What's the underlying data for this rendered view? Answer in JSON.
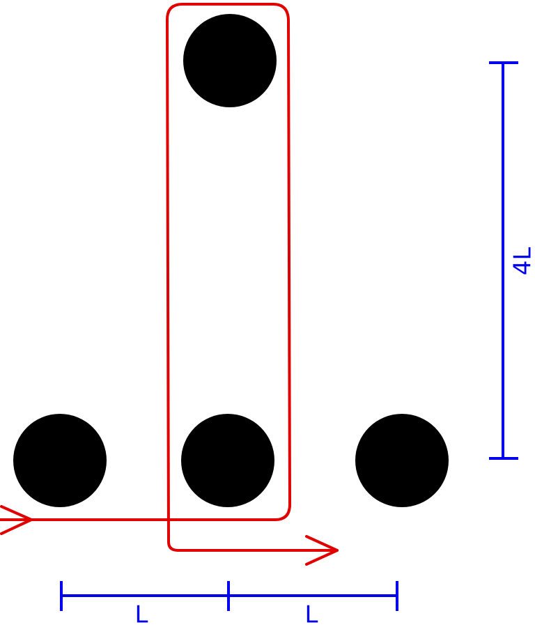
{
  "dimensions": {
    "vertical": "4L",
    "horizontal": [
      "L",
      "L"
    ]
  }
}
